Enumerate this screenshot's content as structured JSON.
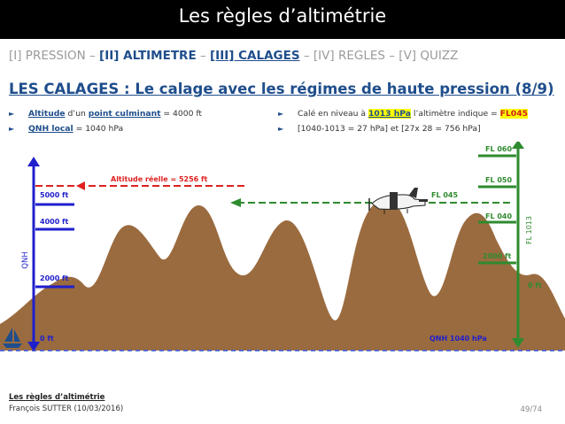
{
  "header": {
    "title": "Les règles d’altimétrie"
  },
  "nav": {
    "item1": "[I] PRESSION",
    "sep": " – ",
    "item2": "[II] ALTIMETRE",
    "item3": "[III] CALAGES",
    "item4": "[IV] REGLES",
    "item5": "[V] QUIZZ"
  },
  "section_title": "LES CALAGES : Le calage avec les régimes de haute pression (8/9)",
  "bullets_left": {
    "b1": {
      "label": "Altitude",
      "t1": " d’un ",
      "hl": "point culminant",
      "t2": " = 4000 ft"
    },
    "b2": {
      "label": "QNH local",
      "t1": " = 1040 hPa"
    }
  },
  "bullets_right": {
    "b1": {
      "t1": "Calé en niveau à ",
      "hl": "1013 hPa",
      "t2": " l’altimètre indique = ",
      "hl2": "FL045"
    },
    "b2": {
      "t1": "[1040-1013 = 27 hPa] et [27x 28 = 756 hPa]"
    }
  },
  "diagram": {
    "qnh_scale_label": "QNH",
    "qnh_marks": [
      "5000 ft",
      "4000 ft",
      "2000 ft",
      "0 ft"
    ],
    "real_altitude": "Altitude réelle = 5256 ft",
    "fl_scale_label": "FL 1013",
    "fl_marks": [
      "FL 060",
      "FL 050",
      "FL 040",
      "2000 ft",
      "0 ft"
    ],
    "fl_level": "FL 045",
    "qnh_value": "QNH 1040 hPa",
    "colors": {
      "qnh": "#1f1fcc",
      "fl": "#2e8b2e",
      "real": "#e02020",
      "terrain": "#9a6b3f",
      "ground": "#5566cc"
    }
  },
  "footer": {
    "title": "Les règles d’altimétrie",
    "author": "François SUTTER (10/03/2016)",
    "page": "49/74"
  }
}
